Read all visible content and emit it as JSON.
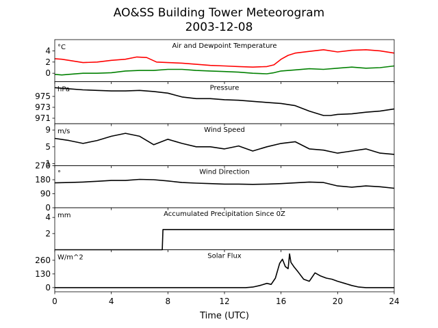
{
  "figure": {
    "title_line1": "AO&SS Building Tower Meteorogram",
    "title_line2": "2003-12-08",
    "xlabel": "Time (UTC)",
    "xlim": [
      0,
      24
    ],
    "xticks": [
      0,
      4,
      8,
      12,
      16,
      20,
      24
    ]
  },
  "chart_data": [
    {
      "type": "line",
      "title": "Air and Dewpoint Temperature",
      "unit": "°C",
      "ylim": [
        -1.5,
        6.0
      ],
      "yticks": [
        0,
        2,
        4
      ],
      "series": [
        {
          "name": "Air Temperature",
          "color": "#ff0000",
          "x": [
            0,
            0.5,
            1,
            2,
            3,
            4,
            5,
            5.8,
            6.5,
            7.2,
            8,
            9,
            10,
            11,
            12,
            13,
            14,
            15,
            15.5,
            16,
            16.5,
            17,
            18,
            19,
            20,
            21,
            22,
            23,
            24
          ],
          "y": [
            2.6,
            2.5,
            2.3,
            1.9,
            2.0,
            2.3,
            2.5,
            2.9,
            2.8,
            2.0,
            1.9,
            1.8,
            1.6,
            1.4,
            1.3,
            1.2,
            1.1,
            1.2,
            1.5,
            2.5,
            3.2,
            3.6,
            3.9,
            4.2,
            3.8,
            4.1,
            4.2,
            4.0,
            3.6
          ]
        },
        {
          "name": "Dewpoint",
          "color": "#008000",
          "x": [
            0,
            0.5,
            1,
            2,
            3,
            4,
            5,
            6,
            7,
            8,
            9,
            10,
            11,
            12,
            13,
            14,
            15,
            15.5,
            16,
            17,
            18,
            19,
            20,
            21,
            22,
            23,
            24
          ],
          "y": [
            -0.2,
            -0.3,
            -0.2,
            0.0,
            0.0,
            0.1,
            0.4,
            0.5,
            0.5,
            0.7,
            0.7,
            0.5,
            0.4,
            0.3,
            0.2,
            0.0,
            -0.1,
            0.1,
            0.4,
            0.6,
            0.8,
            0.7,
            0.9,
            1.1,
            0.9,
            1.0,
            1.3
          ]
        }
      ]
    },
    {
      "type": "line",
      "title": "Pressure",
      "unit": "hPa",
      "ylim": [
        970.0,
        977.7
      ],
      "yticks": [
        971,
        973,
        975
      ],
      "series": [
        {
          "name": "Pressure",
          "color": "#000000",
          "x": [
            0,
            1,
            2,
            3,
            4,
            5,
            6,
            7,
            8,
            9,
            10,
            11,
            12,
            13,
            14,
            15,
            16,
            17,
            18,
            19,
            19.5,
            20,
            21,
            22,
            23,
            24
          ],
          "y": [
            976.6,
            976.4,
            976.2,
            976.1,
            976.0,
            976.0,
            976.1,
            975.9,
            975.6,
            974.9,
            974.6,
            974.6,
            974.4,
            974.3,
            974.1,
            973.9,
            973.7,
            973.3,
            972.3,
            971.5,
            971.5,
            971.7,
            971.8,
            972.1,
            972.3,
            972.7
          ]
        }
      ]
    },
    {
      "type": "line",
      "title": "Wind Speed",
      "unit": "m/s",
      "ylim": [
        0.5,
        10.5
      ],
      "yticks": [
        1,
        5,
        9
      ],
      "series": [
        {
          "name": "Wind Speed",
          "color": "#000000",
          "x": [
            0,
            1,
            2,
            3,
            4,
            5,
            6,
            7,
            8,
            9,
            10,
            11,
            12,
            13,
            14,
            15,
            16,
            17,
            18,
            19,
            20,
            21,
            22,
            23,
            24
          ],
          "y": [
            7.0,
            6.5,
            5.8,
            6.5,
            7.5,
            8.2,
            7.5,
            5.5,
            6.8,
            5.8,
            5.0,
            5.0,
            4.5,
            5.2,
            4.0,
            5.0,
            5.8,
            6.2,
            4.5,
            4.2,
            3.5,
            4.0,
            4.5,
            3.5,
            3.2
          ]
        }
      ]
    },
    {
      "type": "line",
      "title": "Wind Direction",
      "unit": "°",
      "ylim": [
        0,
        270
      ],
      "yticks": [
        0,
        90,
        180,
        270
      ],
      "series": [
        {
          "name": "Wind Direction",
          "color": "#000000",
          "x": [
            0,
            1,
            2,
            3,
            4,
            5,
            6,
            7,
            8,
            9,
            10,
            11,
            12,
            13,
            14,
            15,
            16,
            17,
            18,
            19,
            20,
            21,
            22,
            23,
            24
          ],
          "y": [
            160,
            162,
            165,
            170,
            175,
            175,
            182,
            180,
            172,
            162,
            158,
            155,
            152,
            152,
            150,
            152,
            155,
            160,
            165,
            162,
            140,
            132,
            140,
            135,
            125
          ]
        }
      ]
    },
    {
      "type": "line",
      "title": "Accumulated Precipitation Since 0Z",
      "unit": "mm",
      "ylim": [
        0,
        5.2
      ],
      "yticks": [
        2,
        4
      ],
      "series": [
        {
          "name": "Accumulated Precipitation",
          "color": "#000000",
          "x": [
            0,
            7.6,
            7.65,
            24
          ],
          "y": [
            0,
            0,
            2.5,
            2.5
          ]
        }
      ]
    },
    {
      "type": "line",
      "title": "Solar Flux",
      "unit": "W/m^2",
      "ylim": [
        -40,
        360
      ],
      "yticks": [
        0,
        130,
        260
      ],
      "series": [
        {
          "name": "Solar Flux",
          "color": "#000000",
          "x": [
            0,
            13.5,
            14,
            14.5,
            15,
            15.3,
            15.6,
            15.9,
            16.1,
            16.3,
            16.5,
            16.6,
            16.7,
            16.9,
            17.2,
            17.6,
            18,
            18.4,
            18.8,
            19.2,
            19.6,
            20,
            20.5,
            21,
            21.5,
            22,
            24
          ],
          "y": [
            0,
            0,
            5,
            20,
            40,
            30,
            90,
            230,
            270,
            200,
            180,
            320,
            240,
            200,
            150,
            80,
            60,
            140,
            110,
            90,
            80,
            60,
            40,
            20,
            5,
            0,
            0
          ]
        }
      ]
    }
  ]
}
